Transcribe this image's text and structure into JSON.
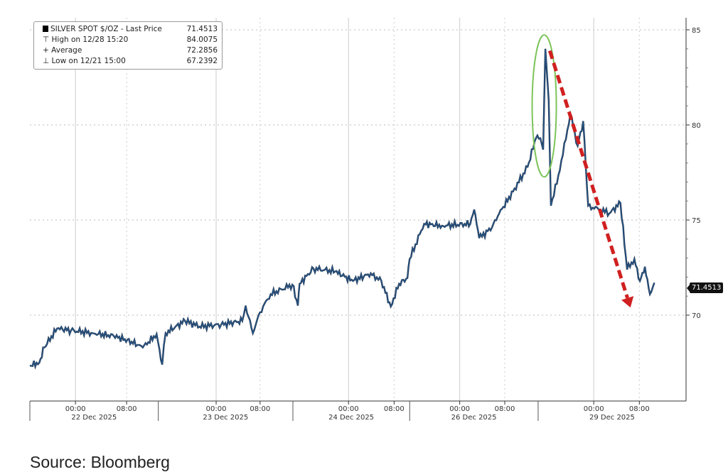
{
  "chart_data": {
    "type": "line",
    "title": "SILVER SPOT $/OZ",
    "xlabel": "",
    "ylabel": "",
    "ylim": [
      65.5,
      86
    ],
    "xlim_hours": [
      0,
      118
    ],
    "yticks": [
      70,
      75,
      80,
      85
    ],
    "grid": true,
    "legend_placement": "top-left",
    "legend": {
      "series_label": "SILVER SPOT $/OZ - Last Price",
      "series_value": "71.4513",
      "rows": [
        {
          "label": "High on 12/28 15:20",
          "value": "84.0075",
          "marker": "⊤"
        },
        {
          "label": "Average",
          "value": "72.2856",
          "marker": "+"
        },
        {
          "label": "Low on 12/21 15:00",
          "value": "67.2392",
          "marker": "⊥"
        }
      ]
    },
    "last_price_label": "71.4513",
    "x_time_ticks": [
      {
        "t": 8.2,
        "label": "00:00"
      },
      {
        "t": 17.4,
        "label": "08:00"
      },
      {
        "t": 33.5,
        "label": "00:00"
      },
      {
        "t": 41.4,
        "label": "08:00"
      },
      {
        "t": 57.3,
        "label": "00:00"
      },
      {
        "t": 65.5,
        "label": "08:00"
      },
      {
        "t": 77.3,
        "label": "00:00"
      },
      {
        "t": 85.4,
        "label": "08:00"
      },
      {
        "t": 101.4,
        "label": "00:00"
      },
      {
        "t": 109.6,
        "label": "08:00"
      }
    ],
    "sessions": [
      {
        "start": 0,
        "end": 23.1,
        "label": "22 Dec 2025"
      },
      {
        "start": 23.1,
        "end": 47.3,
        "label": "23 Dec 2025"
      },
      {
        "start": 47.3,
        "end": 68.3,
        "label": "24 Dec 2025"
      },
      {
        "start": 68.3,
        "end": 91.4,
        "label": "26 Dec 2025"
      },
      {
        "start": 91.4,
        "end": 118,
        "label": "29 Dec 2025"
      }
    ],
    "series": [
      {
        "name": "SILVER SPOT $/OZ - Last Price",
        "color": "#2a5a8c",
        "points": [
          [
            0,
            67.35
          ],
          [
            1.7,
            67.5
          ],
          [
            2.6,
            68.3
          ],
          [
            4.9,
            69.3
          ],
          [
            7.4,
            69.2
          ],
          [
            11.3,
            69.05
          ],
          [
            15.1,
            68.9
          ],
          [
            18.3,
            68.6
          ],
          [
            20.3,
            68.3
          ],
          [
            22.8,
            69.0
          ],
          [
            23.8,
            67.4
          ],
          [
            24.4,
            69.05
          ],
          [
            27.9,
            69.7
          ],
          [
            30.5,
            69.4
          ],
          [
            34.4,
            69.5
          ],
          [
            38.2,
            69.7
          ],
          [
            38.8,
            70.5
          ],
          [
            40.1,
            69.05
          ],
          [
            41.4,
            70.15
          ],
          [
            43.3,
            71.1
          ],
          [
            47.2,
            71.6
          ],
          [
            48.2,
            70.5
          ],
          [
            48.5,
            71.65
          ],
          [
            51.0,
            72.45
          ],
          [
            54.9,
            72.3
          ],
          [
            58.1,
            71.8
          ],
          [
            61.3,
            72.2
          ],
          [
            63.2,
            71.8
          ],
          [
            64.9,
            70.45
          ],
          [
            66.4,
            71.65
          ],
          [
            67.9,
            71.95
          ],
          [
            68.3,
            72.95
          ],
          [
            70.9,
            74.8
          ],
          [
            74.1,
            74.7
          ],
          [
            79.2,
            74.8
          ],
          [
            79.9,
            75.55
          ],
          [
            80.8,
            74.05
          ],
          [
            83.1,
            74.6
          ],
          [
            84.4,
            75.35
          ],
          [
            86.9,
            76.5
          ],
          [
            89.5,
            77.8
          ],
          [
            91.0,
            79.3
          ],
          [
            91.8,
            79.3
          ],
          [
            92.3,
            78.7
          ],
          [
            92.7,
            84.0
          ],
          [
            93.3,
            81.3
          ],
          [
            93.7,
            75.75
          ],
          [
            95.3,
            77.6
          ],
          [
            97.2,
            80.6
          ],
          [
            98.5,
            78.9
          ],
          [
            99.5,
            80.2
          ],
          [
            100.4,
            75.75
          ],
          [
            102.3,
            75.55
          ],
          [
            104.2,
            75.35
          ],
          [
            106.2,
            75.9
          ],
          [
            107.4,
            72.4
          ],
          [
            108.7,
            72.95
          ],
          [
            109.7,
            71.8
          ],
          [
            110.6,
            72.55
          ],
          [
            111.5,
            71.1
          ],
          [
            112.3,
            71.7
          ]
        ]
      }
    ],
    "annotations": [
      {
        "type": "ellipse",
        "color": "#7cc45a",
        "center": [
          92.5,
          81.0
        ],
        "note": "spike"
      },
      {
        "type": "arrow",
        "color": "#d02020",
        "from": [
          93.5,
          83.9
        ],
        "to": [
          108.0,
          70.4
        ]
      }
    ]
  },
  "source": "Source: Bloomberg"
}
